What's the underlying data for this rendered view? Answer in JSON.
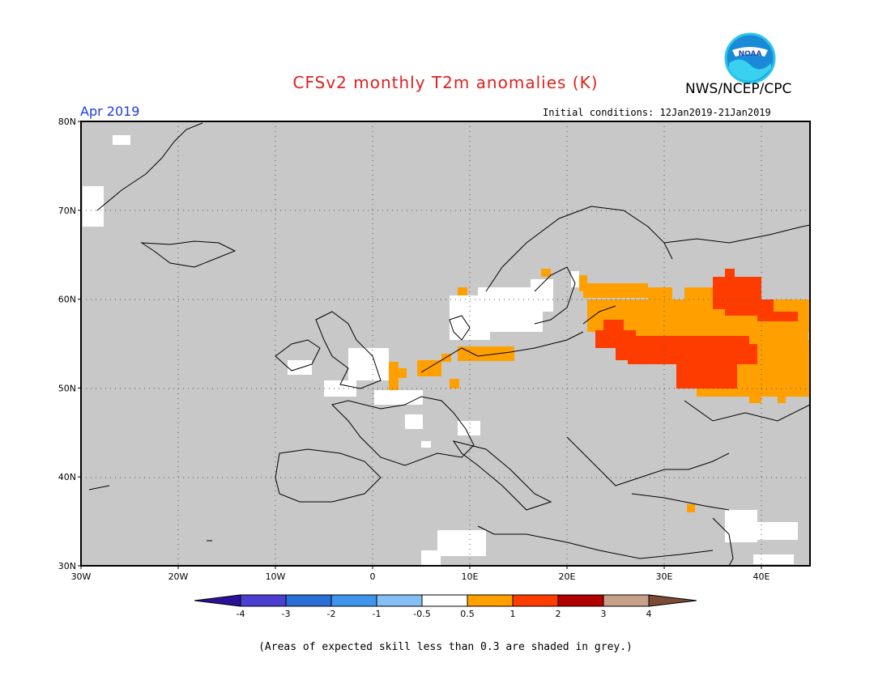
{
  "title": "CFSv2 monthly T2m anomalies (K)",
  "agency": "NWS/NCEP/CPC",
  "period": "Apr 2019",
  "initial_conditions": "Initial conditions: 12Jan2019-21Jan2019",
  "footnote": "(Areas of expected skill less than 0.3 are shaded in grey.)",
  "logo": {
    "text": "NOAA",
    "icon": "noaa-logo"
  },
  "map": {
    "lon_range": [
      -30,
      45
    ],
    "lat_range": [
      30,
      80
    ],
    "lon_ticks": [
      "30W",
      "20W",
      "10W",
      "0",
      "10E",
      "20E",
      "30E",
      "40E"
    ],
    "lat_ticks": [
      "30N",
      "40N",
      "50N",
      "60N",
      "70N",
      "80N"
    ],
    "grid": true,
    "skill_mask_color": "#c8c8c8"
  },
  "colorbar": {
    "tick_labels": [
      "-4",
      "-3",
      "-2",
      "-1",
      "-0.5",
      "0.5",
      "1",
      "2",
      "3",
      "4"
    ],
    "colors": [
      "#2c0f9a",
      "#4a3fd0",
      "#2a6fd6",
      "#3f95ee",
      "#84bff5",
      "#ffffff",
      "#ffa000",
      "#ff3c00",
      "#b00000",
      "#c8a08a",
      "#7d4b34"
    ]
  },
  "colors": {
    "title": "#e0201e",
    "period": "#1a3ce6",
    "warm_1": "#ffa000",
    "warm_2": "#ff3c00"
  }
}
